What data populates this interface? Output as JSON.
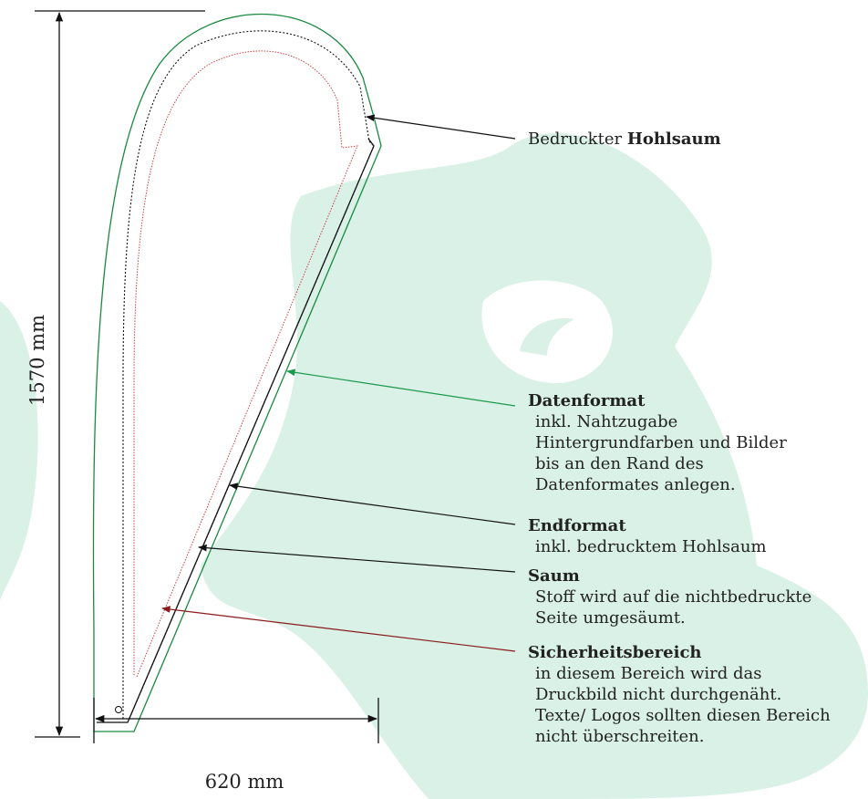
{
  "dimensions": {
    "height": "1570 mm",
    "width": "620 mm"
  },
  "hohlsaum": {
    "prefix": "Bedruckter",
    "bold": "Hohlsaum"
  },
  "labels": [
    {
      "title": "Datenformat",
      "lines": [
        "inkl. Nahtzugabe",
        "Hintergrundfarben und Bilder",
        "bis an den Rand des",
        "Datenformates anlegen."
      ]
    },
    {
      "title": "Endformat",
      "lines": [
        "inkl. bedrucktem Hohlsaum"
      ]
    },
    {
      "title": "Saum",
      "lines": [
        "Stoff wird auf die nichtbedruckte",
        "Seite umgesäumt."
      ]
    },
    {
      "title": "Sicherheitsbereich",
      "lines": [
        "in diesem Bereich wird das",
        "Druckbild nicht durchgenäht.",
        "Texte/ Logos sollten diesen Bereich",
        "nicht überschreiten."
      ]
    }
  ]
}
